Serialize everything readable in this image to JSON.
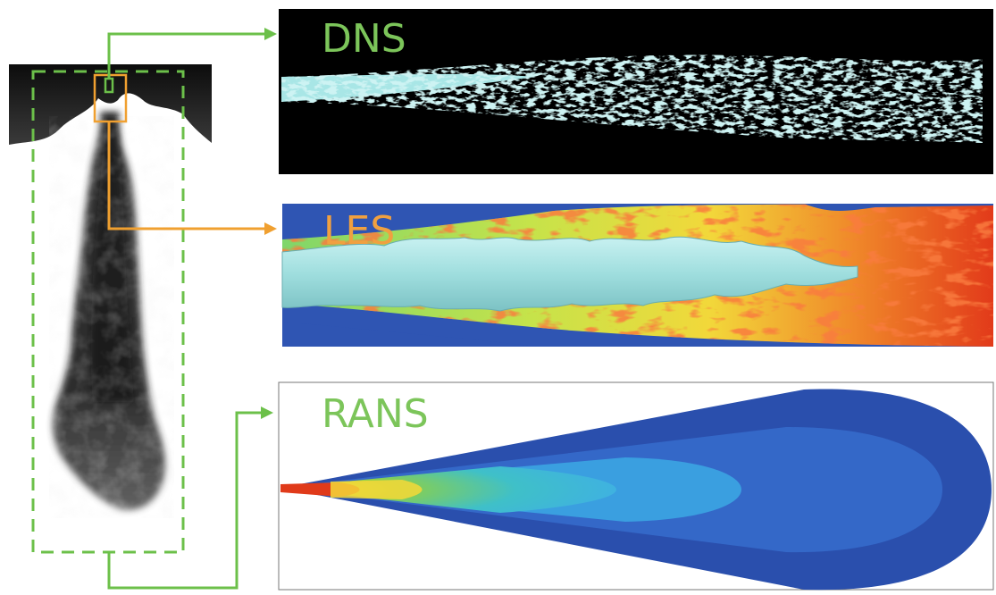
{
  "panels": {
    "dns": {
      "label": "DNS",
      "label_color": "#7cc55a"
    },
    "les": {
      "label": "LES",
      "label_color": "#f0a040"
    },
    "rans": {
      "label": "RANS",
      "label_color": "#7cc55a"
    }
  },
  "colors": {
    "green_connector": "#6cc04a",
    "orange_connector": "#f0a030",
    "dns_background": "#000000",
    "dns_jet": "#9fe3e3",
    "les_background": "#2f55b3",
    "rans_outer": "#2a4fad",
    "rans_core": "#e03a1a"
  }
}
